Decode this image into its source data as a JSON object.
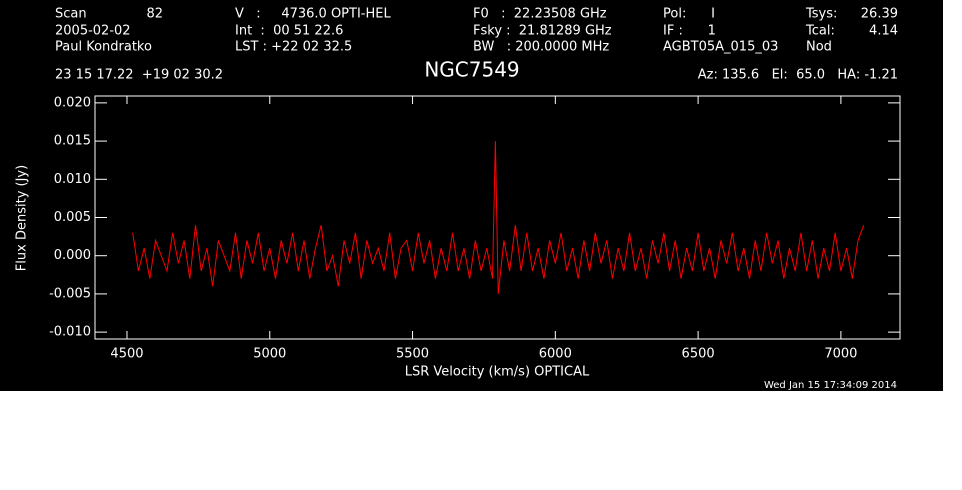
{
  "chart_data": {
    "type": "line",
    "title": "NGC7549",
    "header": [
      "Scan",
      "82",
      "2005-02-02",
      "Paul Kondratko",
      "V   :     4736.0 OPTI-HEL",
      "Int  :  00 51 22.6",
      "LST : +22 02 32.5",
      "F0   :  22.23508 GHz",
      "Fsky :  21.81289 GHz",
      "BW   : 200.0000 MHz",
      "Pol:      I",
      "IF :      1",
      "AGBT05A_015_03",
      "Tsys:",
      "26.39",
      "Tcal:",
      "4.14",
      "Nod",
      "23 15 17.22  +19 02 30.2",
      "Az: 135.6   El:  65.0   HA: -1.21"
    ],
    "timestamp": "Wed Jan 15 17:34:09 2014",
    "xlabel": "LSR Velocity (km/s) OPTICAL",
    "ylabel": "Flux Density (Jy)",
    "x": [
      4520,
      4540,
      4560,
      4580,
      4600,
      4620,
      4640,
      4660,
      4680,
      4700,
      4720,
      4740,
      4760,
      4780,
      4800,
      4820,
      4840,
      4860,
      4880,
      4900,
      4920,
      4940,
      4960,
      4980,
      5000,
      5020,
      5040,
      5060,
      5080,
      5100,
      5120,
      5140,
      5160,
      5180,
      5200,
      5220,
      5240,
      5260,
      5280,
      5300,
      5320,
      5340,
      5360,
      5380,
      5400,
      5420,
      5440,
      5460,
      5480,
      5500,
      5520,
      5540,
      5560,
      5580,
      5600,
      5620,
      5640,
      5660,
      5680,
      5700,
      5720,
      5740,
      5760,
      5780,
      5790,
      5800,
      5820,
      5840,
      5860,
      5880,
      5900,
      5920,
      5940,
      5960,
      5980,
      6000,
      6020,
      6040,
      6060,
      6080,
      6100,
      6120,
      6140,
      6160,
      6180,
      6200,
      6220,
      6240,
      6260,
      6280,
      6300,
      6320,
      6340,
      6360,
      6380,
      6400,
      6420,
      6440,
      6460,
      6480,
      6500,
      6520,
      6540,
      6560,
      6580,
      6600,
      6620,
      6640,
      6660,
      6680,
      6700,
      6720,
      6740,
      6760,
      6780,
      6800,
      6820,
      6840,
      6860,
      6880,
      6900,
      6920,
      6940,
      6960,
      6980,
      7000,
      7020,
      7040,
      7060,
      7080
    ],
    "series": [
      {
        "color": "#ff0000",
        "values": [
          0.003,
          -0.002,
          0.001,
          -0.003,
          0.002,
          0.0,
          -0.002,
          0.003,
          -0.001,
          0.002,
          -0.003,
          0.004,
          -0.002,
          0.001,
          -0.004,
          0.002,
          0.0,
          -0.002,
          0.003,
          -0.003,
          0.002,
          -0.001,
          0.003,
          -0.002,
          0.001,
          -0.003,
          0.002,
          -0.001,
          0.003,
          -0.002,
          0.002,
          -0.003,
          0.001,
          0.004,
          -0.002,
          0.0,
          -0.004,
          0.002,
          -0.001,
          0.003,
          -0.003,
          0.002,
          -0.001,
          0.001,
          -0.002,
          0.003,
          -0.003,
          0.001,
          0.002,
          -0.002,
          0.003,
          -0.001,
          0.002,
          -0.003,
          0.001,
          -0.002,
          0.003,
          -0.002,
          0.001,
          -0.003,
          0.002,
          -0.002,
          0.001,
          -0.003,
          0.015,
          -0.005,
          0.002,
          -0.002,
          0.004,
          -0.002,
          0.003,
          -0.002,
          0.001,
          -0.003,
          0.002,
          -0.001,
          0.003,
          -0.002,
          0.001,
          -0.003,
          0.002,
          -0.002,
          0.003,
          -0.001,
          0.002,
          -0.003,
          0.001,
          -0.002,
          0.003,
          -0.002,
          0.001,
          -0.003,
          0.002,
          -0.001,
          0.003,
          -0.002,
          0.002,
          -0.003,
          0.001,
          -0.002,
          0.003,
          -0.002,
          0.001,
          -0.003,
          0.002,
          -0.001,
          0.003,
          -0.002,
          0.001,
          -0.003,
          0.002,
          -0.002,
          0.003,
          -0.001,
          0.002,
          -0.003,
          0.001,
          -0.002,
          0.003,
          -0.002,
          0.002,
          -0.003,
          0.001,
          -0.002,
          0.003,
          -0.002,
          0.001,
          -0.003,
          0.002,
          0.004
        ]
      }
    ],
    "xlim": [
      4388,
      7207
    ],
    "ylim": [
      -0.0109,
      0.0209
    ],
    "xticks": [
      4500,
      5000,
      5500,
      6000,
      6500,
      7000
    ],
    "yticks": [
      {
        "value": -0.01,
        "label": "-0.010"
      },
      {
        "value": -0.005,
        "label": "-0.005"
      },
      {
        "value": 0,
        "label": "0.000"
      },
      {
        "value": 0.005,
        "label": "0.005"
      },
      {
        "value": 0.01,
        "label": "0.010"
      },
      {
        "value": 0.015,
        "label": "0.015"
      },
      {
        "value": 0.02,
        "label": "0.020"
      }
    ]
  }
}
